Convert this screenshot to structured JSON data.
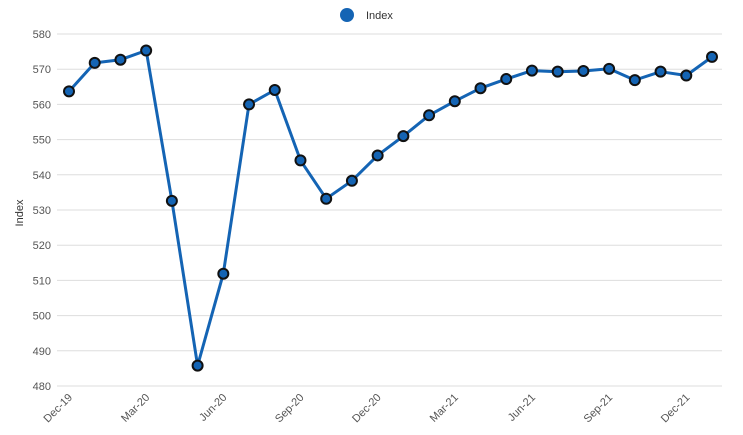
{
  "chart_data": {
    "type": "line",
    "ylabel": "Index",
    "xlabel": "",
    "ylim": [
      480,
      580
    ],
    "y_ticks": [
      480,
      490,
      500,
      510,
      520,
      530,
      540,
      550,
      560,
      570,
      580
    ],
    "grid": true,
    "legend_position": "top-center",
    "x": [
      "Dec-19",
      "Jan-20",
      "Feb-20",
      "Mar-20",
      "Apr-20",
      "May-20",
      "Jun-20",
      "Jul-20",
      "Aug-20",
      "Sep-20",
      "Oct-20",
      "Nov-20",
      "Dec-20",
      "Jan-21",
      "Feb-21",
      "Mar-21",
      "Apr-21",
      "May-21",
      "Jun-21",
      "Jul-21",
      "Aug-21",
      "Sep-21",
      "Oct-21",
      "Nov-21",
      "Dec-21",
      "Jan-22"
    ],
    "x_tick_labels": [
      "Dec-19",
      "Mar-20",
      "Jun-20",
      "Sep-20",
      "Dec-20",
      "Mar-21",
      "Jun-21",
      "Sep-21",
      "Dec-21"
    ],
    "series": [
      {
        "name": "Index",
        "color": "#1464b4",
        "values": [
          563.7,
          571.8,
          572.7,
          575.3,
          532.6,
          485.8,
          511.9,
          560.0,
          564.1,
          544.1,
          533.2,
          538.3,
          545.5,
          551.0,
          556.9,
          560.9,
          564.6,
          567.2,
          569.6,
          569.3,
          569.5,
          570.1,
          566.9,
          569.3,
          568.2,
          573.5
        ]
      }
    ]
  },
  "legend": {
    "label": "Index",
    "icon": "circle-marker-icon"
  }
}
